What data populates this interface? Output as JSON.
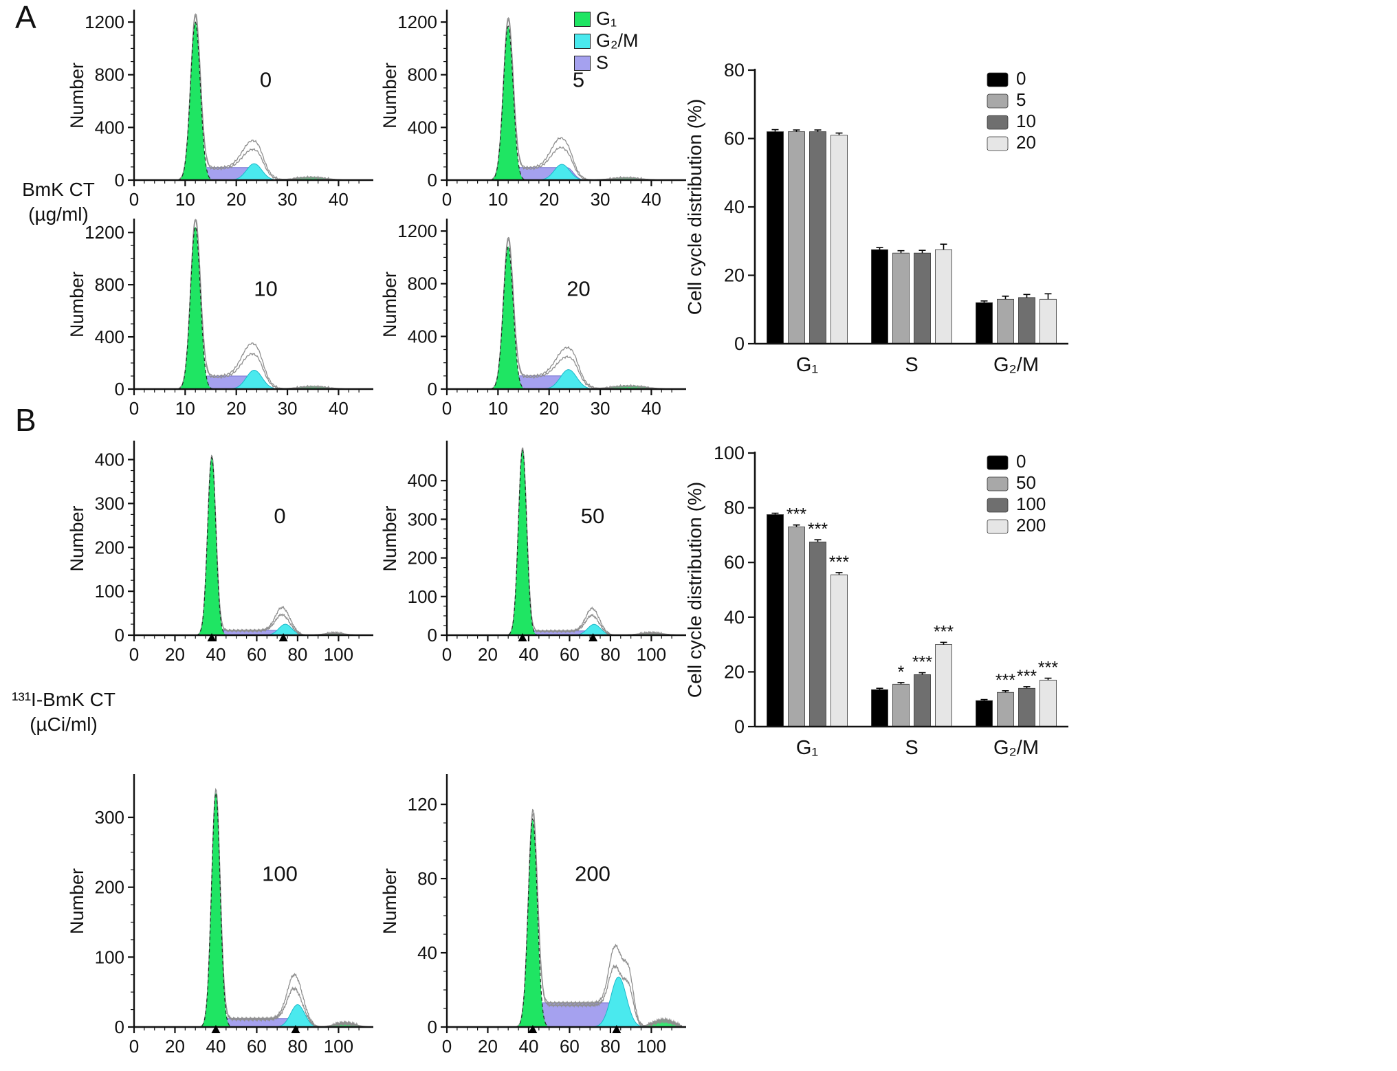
{
  "figure": {
    "background": "#ffffff"
  },
  "panel_a": {
    "label": "A",
    "row_label_line1": "BmK CT",
    "row_label_line2": "(µg/ml)"
  },
  "panel_b": {
    "label": "B",
    "row_label_line1": "¹³¹I-BmK CT",
    "row_label_line2": "(µCi/ml)"
  },
  "flow_legend": {
    "items": [
      {
        "label": "G₁",
        "color": "#1fe563"
      },
      {
        "label": "G₂/M",
        "color": "#4ae9ee"
      },
      {
        "label": "S",
        "color": "#a5a1ef"
      }
    ]
  },
  "colors": {
    "g1_fill": "#1fe563",
    "g2_fill": "#4ae9ee",
    "s_fill": "#a5a1ef",
    "outline": "#8f8f8f",
    "axis": "#111111"
  },
  "chart_data": [
    {
      "id": "hist-a-0",
      "type": "area",
      "subtype": "flow-cytometry-histogram",
      "panel": "A",
      "dose_label": "0",
      "ylabel": "Number",
      "x_ticks": [
        0,
        10,
        20,
        30,
        40
      ],
      "x_minor": 2,
      "x_max": 46,
      "y_ticks": [
        0,
        400,
        800,
        1200
      ],
      "y_minor": 100,
      "y_headroom": 1.07,
      "dose_pos": [
        0.56,
        0.45
      ],
      "g1": [
        12,
        1200,
        0.95
      ],
      "s": [
        13,
        24,
        95,
        1.2
      ],
      "g2": [
        23.5,
        125,
        1.5
      ],
      "raw_g2": [
        [
          23.2,
          205,
          2.0
        ]
      ],
      "debris": [
        [
          34.5,
          22,
          3.0
        ]
      ],
      "axis_arrows": []
    },
    {
      "id": "hist-a-5",
      "type": "area",
      "subtype": "flow-cytometry-histogram",
      "panel": "A",
      "dose_label": "5",
      "ylabel": "Number",
      "x_ticks": [
        0,
        10,
        20,
        30,
        40
      ],
      "x_minor": 2,
      "x_max": 46,
      "y_ticks": [
        0,
        400,
        800,
        1200
      ],
      "y_minor": 100,
      "y_headroom": 1.07,
      "dose_pos": [
        0.56,
        0.45
      ],
      "g1": [
        12,
        1170,
        0.95
      ],
      "s": [
        13,
        23.5,
        95,
        1.2
      ],
      "g2": [
        22.5,
        120,
        1.5
      ],
      "raw_g2": [
        [
          22.3,
          225,
          1.9
        ]
      ],
      "debris": [
        [
          35,
          18,
          3.0
        ]
      ],
      "axis_arrows": []
    },
    {
      "id": "hist-a-10",
      "type": "area",
      "subtype": "flow-cytometry-histogram",
      "panel": "A",
      "dose_label": "10",
      "ylabel": "Number",
      "x_ticks": [
        0,
        10,
        20,
        30,
        40
      ],
      "x_minor": 2,
      "x_max": 46,
      "y_ticks": [
        0,
        400,
        800,
        1200
      ],
      "y_minor": 100,
      "y_headroom": 1.08,
      "dose_pos": [
        0.56,
        0.45
      ],
      "g1": [
        12,
        1245,
        0.95
      ],
      "s": [
        13,
        24,
        100,
        1.2
      ],
      "g2": [
        23.5,
        145,
        1.55
      ],
      "raw_g2": [
        [
          23.1,
          250,
          2.0
        ]
      ],
      "debris": [
        [
          35,
          20,
          3.0
        ]
      ],
      "axis_arrows": []
    },
    {
      "id": "hist-a-20",
      "type": "area",
      "subtype": "flow-cytometry-histogram",
      "panel": "A",
      "dose_label": "20",
      "ylabel": "Number",
      "x_ticks": [
        0,
        10,
        20,
        30,
        40
      ],
      "x_minor": 2,
      "x_max": 46,
      "y_ticks": [
        0,
        400,
        800,
        1200
      ],
      "y_minor": 100,
      "y_headroom": 1.07,
      "dose_pos": [
        0.56,
        0.45
      ],
      "g1": [
        12,
        1085,
        0.95
      ],
      "s": [
        13,
        24.5,
        100,
        1.2
      ],
      "g2": [
        23.8,
        148,
        1.6
      ],
      "raw_g2": [
        [
          23.5,
          215,
          2.1
        ]
      ],
      "debris": [
        [
          35.5,
          25,
          3.3
        ]
      ],
      "axis_arrows": []
    },
    {
      "id": "bars-a",
      "type": "bar",
      "ylabel": "Cell cycle distribution (%)",
      "ylim": [
        0,
        80
      ],
      "y_ticks": [
        0,
        20,
        40,
        60,
        80
      ],
      "categories": [
        "G₁",
        "S",
        "G₂/M"
      ],
      "legend_position": "top-right",
      "series": [
        {
          "name": "0",
          "color": "#000000",
          "values": [
            62,
            27.5,
            12
          ],
          "errors": [
            0.6,
            0.6,
            0.5
          ],
          "sig": [
            "",
            "",
            ""
          ]
        },
        {
          "name": "5",
          "color": "#a8a8a8",
          "values": [
            62,
            26.5,
            13
          ],
          "errors": [
            0.5,
            0.7,
            0.9
          ],
          "sig": [
            "",
            "",
            ""
          ]
        },
        {
          "name": "10",
          "color": "#6f6f6f",
          "values": [
            62,
            26.5,
            13.5
          ],
          "errors": [
            0.5,
            0.8,
            0.9
          ],
          "sig": [
            "",
            "",
            ""
          ]
        },
        {
          "name": "20",
          "color": "#e6e6e6",
          "values": [
            61,
            27.5,
            13
          ],
          "errors": [
            0.6,
            1.6,
            1.6
          ],
          "sig": [
            "",
            "",
            ""
          ]
        }
      ]
    },
    {
      "id": "hist-b-0",
      "type": "area",
      "subtype": "flow-cytometry-histogram",
      "panel": "B",
      "dose_label": "0",
      "ylabel": "Number",
      "x_ticks": [
        0,
        20,
        40,
        60,
        80,
        100
      ],
      "x_minor": 5,
      "x_max": 115,
      "y_ticks": [
        0,
        100,
        200,
        300,
        400
      ],
      "y_minor": 25,
      "y_headroom": 1.1,
      "dose_pos": [
        0.62,
        0.42
      ],
      "g1": [
        38,
        405,
        2.0
      ],
      "s": [
        41,
        70,
        11,
        2.5
      ],
      "g2": [
        74,
        25,
        3.2
      ],
      "raw_g2": [
        [
          73,
          57,
          3.6
        ]
      ],
      "debris": [
        [
          98,
          5,
          5
        ]
      ],
      "axis_arrows": [
        38,
        73
      ]
    },
    {
      "id": "hist-b-50",
      "type": "area",
      "subtype": "flow-cytometry-histogram",
      "panel": "B",
      "dose_label": "50",
      "ylabel": "Number",
      "x_ticks": [
        0,
        20,
        40,
        60,
        80,
        100
      ],
      "x_minor": 5,
      "x_max": 115,
      "y_ticks": [
        0,
        100,
        200,
        300,
        400
      ],
      "y_minor": 25,
      "y_headroom": 1.25,
      "dose_pos": [
        0.62,
        0.42
      ],
      "g1": [
        37,
        480,
        2.0
      ],
      "s": [
        40,
        69,
        11,
        2.5
      ],
      "g2": [
        72,
        28,
        3.2
      ],
      "raw_g2": [
        [
          71.5,
          62,
          3.4
        ]
      ],
      "debris": [
        [
          100,
          6,
          6
        ]
      ],
      "axis_arrows": [
        37,
        71.5
      ]
    },
    {
      "id": "hist-b-100",
      "type": "area",
      "subtype": "flow-cytometry-histogram",
      "panel": "B",
      "dose_label": "100",
      "ylabel": "Number",
      "x_ticks": [
        0,
        20,
        40,
        60,
        80,
        100
      ],
      "x_minor": 5,
      "x_max": 115,
      "y_ticks": [
        0,
        100,
        200,
        300
      ],
      "y_minor": 25,
      "y_headroom": 1.2,
      "dose_pos": [
        0.62,
        0.42
      ],
      "g1": [
        40,
        335,
        2.1
      ],
      "s": [
        43,
        76,
        12,
        2.5
      ],
      "g2": [
        80,
        32,
        3.4
      ],
      "raw_g2": [
        [
          79,
          68,
          3.8
        ]
      ],
      "debris": [
        [
          103,
          6,
          5
        ]
      ],
      "axis_arrows": [
        40,
        79
      ]
    },
    {
      "id": "hist-b-200",
      "type": "area",
      "subtype": "flow-cytometry-histogram",
      "panel": "B",
      "dose_label": "200",
      "ylabel": "Number",
      "x_ticks": [
        0,
        20,
        40,
        60,
        80,
        100
      ],
      "x_minor": 5,
      "x_max": 115,
      "y_ticks": [
        0,
        40,
        80,
        120
      ],
      "y_minor": 10,
      "y_headroom": 1.13,
      "dose_pos": [
        0.62,
        0.42
      ],
      "g1": [
        42,
        112,
        2.2
      ],
      "s": [
        46,
        79,
        13,
        3
      ],
      "g2": [
        84,
        27,
        3.8
      ],
      "raw_g2": [
        [
          83,
          37,
          3.2
        ],
        [
          89,
          26,
          2.4
        ]
      ],
      "debris": [
        [
          106,
          4,
          5
        ]
      ],
      "axis_arrows": [
        42,
        83
      ]
    },
    {
      "id": "bars-b",
      "type": "bar",
      "ylabel": "Cell cycle distribution (%)",
      "ylim": [
        0,
        100
      ],
      "y_ticks": [
        0,
        20,
        40,
        60,
        80,
        100
      ],
      "categories": [
        "G₁",
        "S",
        "G₂/M"
      ],
      "legend_position": "top-right",
      "series": [
        {
          "name": "0",
          "color": "#000000",
          "values": [
            77.5,
            13.5,
            9.5
          ],
          "errors": [
            0.5,
            0.5,
            0.4
          ],
          "sig": [
            "",
            "",
            ""
          ]
        },
        {
          "name": "50",
          "color": "#a8a8a8",
          "values": [
            73,
            15.5,
            12.5
          ],
          "errors": [
            0.7,
            0.6,
            0.6
          ],
          "sig": [
            "***",
            "*",
            "***"
          ]
        },
        {
          "name": "100",
          "color": "#6f6f6f",
          "values": [
            67.5,
            19,
            14
          ],
          "errors": [
            0.8,
            0.7,
            0.6
          ],
          "sig": [
            "***",
            "***",
            "***"
          ]
        },
        {
          "name": "200",
          "color": "#e6e6e6",
          "values": [
            55.5,
            30,
            17
          ],
          "errors": [
            0.8,
            0.8,
            0.7
          ],
          "sig": [
            "***",
            "***",
            "***"
          ]
        }
      ]
    }
  ]
}
